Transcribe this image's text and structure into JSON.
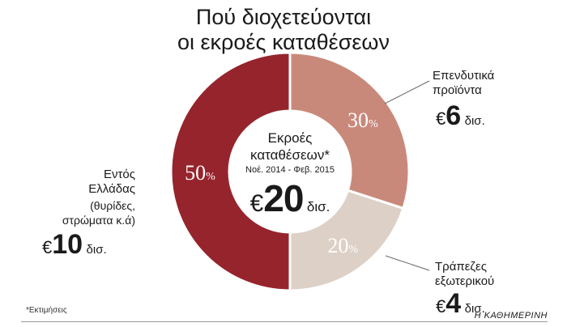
{
  "title_line1": "Πού διοχετεύονται",
  "title_line2": "οι εκροές καταθέσεων",
  "centre": {
    "title_line1": "Εκροές",
    "title_line2": "καταθέσεων*",
    "period": "Νοέ. 2014 - Φεβ. 2015",
    "euro": "€",
    "value": "20",
    "unit": "δισ."
  },
  "labels": {
    "invest_line1": "Επενδυτικά",
    "invest_line2": "προϊόντα",
    "invest_value": "6",
    "banks_line1": "Τράπεζες",
    "banks_line2": "εξωτερικού",
    "banks_value": "4",
    "domestic_line1": "Εντός",
    "domestic_line2": "Ελλάδας",
    "domestic_line3": "(θυρίδες,",
    "domestic_line4": "στρώματα κ.ά)",
    "domestic_value": "10",
    "euro": "€",
    "unit": "δισ."
  },
  "footnote": "*Εκτιμήσεις",
  "credit": "Η ΚΑΘΗΜΕΡΙΝΗ",
  "chart_data": {
    "type": "pie",
    "donut": true,
    "slices": [
      {
        "name": "Επενδυτικά προϊόντα",
        "value": 30,
        "amount": 6,
        "color": "#c9897a"
      },
      {
        "name": "Τράπεζες εξωτερικού",
        "value": 20,
        "amount": 4,
        "color": "#ddd0c6"
      },
      {
        "name": "Εντός Ελλάδας",
        "value": 50,
        "amount": 10,
        "color": "#96242c"
      }
    ],
    "total": 20,
    "unit_suffix": "%"
  }
}
